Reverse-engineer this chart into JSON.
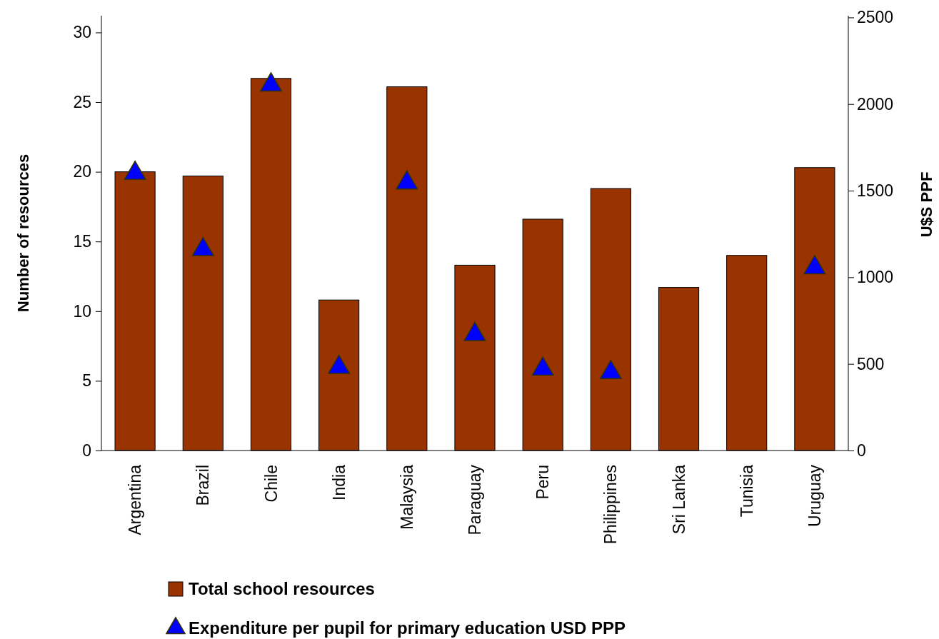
{
  "chart_data": {
    "type": "bar",
    "categories": [
      "Argentina",
      "Brazil",
      "Chile",
      "India",
      "Malaysia",
      "Paraguay",
      "Peru",
      "Philippines",
      "Sri Lanka",
      "Tunisia",
      "Uruguay"
    ],
    "series": [
      {
        "name": "Total school resources",
        "color": "#993300",
        "values": [
          20,
          19.7,
          26.7,
          10.8,
          26.1,
          13.3,
          16.6,
          18.8,
          11.7,
          14.0,
          20.3
        ]
      },
      {
        "name": "Expenditure per pupil for primary education USD PPP",
        "type": "scatter",
        "axis": "y2",
        "color": "#0000ff",
        "values": [
          1600,
          1160,
          2110,
          480,
          1545,
          670,
          470,
          450,
          null,
          null,
          1055
        ]
      }
    ],
    "ylabel": "Number of resources",
    "y2label": "U$S PPF",
    "ylim": [
      0,
      31.2
    ],
    "yticks": [
      0,
      5,
      10,
      15,
      20,
      25,
      30
    ],
    "y2lim": [
      0,
      2510
    ],
    "y2ticks": [
      0,
      500,
      1000,
      1500,
      2000,
      2500
    ],
    "marker": "triangle",
    "legend": "bottom",
    "grid": false
  }
}
